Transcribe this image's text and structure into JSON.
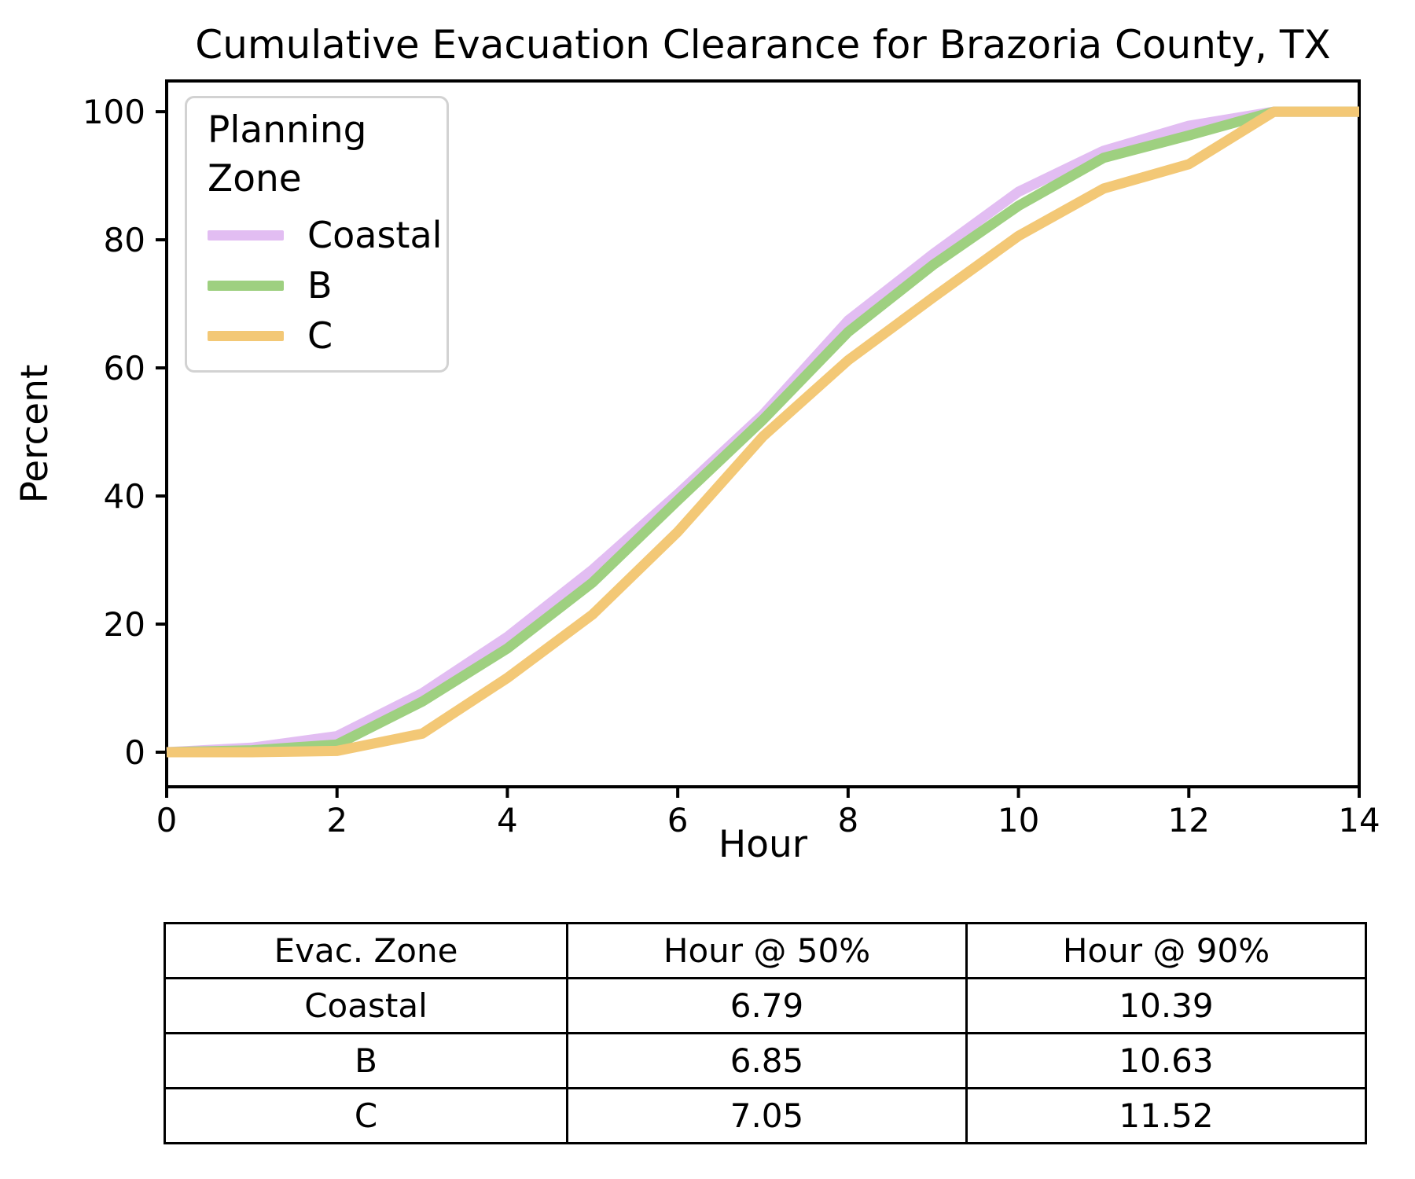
{
  "title": "Cumulative Evacuation Clearance for Brazoria County, TX",
  "chart_data": {
    "type": "line",
    "title": "Cumulative Evacuation Clearance for Brazoria County, TX",
    "xlabel": "Hour",
    "ylabel": "Percent",
    "xlim": [
      0,
      14
    ],
    "ylim": [
      -5.4,
      104.8
    ],
    "x_ticks": [
      0,
      2,
      4,
      6,
      8,
      10,
      12,
      14
    ],
    "y_ticks": [
      0,
      20,
      40,
      60,
      80,
      100
    ],
    "grid": false,
    "legend": {
      "title": "Planning Zone",
      "position": "upper left"
    },
    "x": [
      0,
      1,
      2,
      3,
      4,
      5,
      6,
      7,
      8,
      9,
      10,
      11,
      12,
      13,
      14
    ],
    "series": [
      {
        "name": "Coastal",
        "color": "#e2bdf2",
        "values": [
          0,
          0.7,
          2.5,
          9.2,
          18.0,
          28.5,
          40.3,
          52.7,
          67.4,
          77.8,
          87.5,
          93.9,
          97.8,
          100,
          100
        ]
      },
      {
        "name": "B",
        "color": "#9ed080",
        "values": [
          0,
          0.3,
          1.2,
          7.9,
          16.2,
          26.5,
          39.3,
          51.9,
          65.6,
          76.1,
          85.3,
          92.8,
          96.3,
          100,
          100
        ]
      },
      {
        "name": "C",
        "color": "#f3c876",
        "values": [
          0,
          0,
          0.2,
          2.9,
          11.6,
          21.5,
          34.4,
          49.3,
          61.2,
          71.0,
          80.6,
          88.0,
          91.8,
          100,
          100
        ]
      }
    ]
  },
  "table": {
    "headers": [
      "Evac. Zone",
      "Hour @ 50%",
      "Hour @ 90%"
    ],
    "rows": [
      [
        "Coastal",
        "6.79",
        "10.39"
      ],
      [
        "B",
        "6.85",
        "10.63"
      ],
      [
        "C",
        "7.05",
        "11.52"
      ]
    ]
  }
}
